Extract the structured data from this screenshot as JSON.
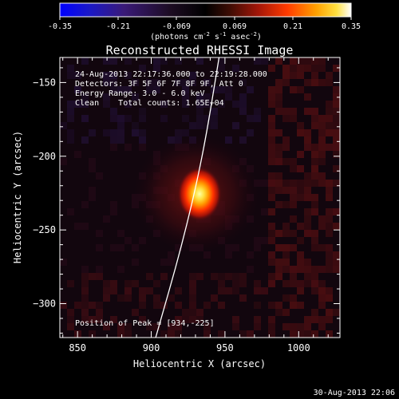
{
  "chart_data": {
    "type": "heatmap",
    "title": "Reconstructed RHESSI Image",
    "xlabel": "Heliocentric X (arcsec)",
    "ylabel": "Heliocentric Y (arcsec)",
    "xlim": [
      838,
      1028
    ],
    "ylim": [
      -323,
      -133
    ],
    "xticks": [
      850,
      900,
      950,
      1000
    ],
    "yticks": [
      -150,
      -200,
      -250,
      -300
    ],
    "colorbar": {
      "range": [
        -0.35,
        0.35
      ],
      "ticks": [
        "-0.35",
        "-0.21",
        "-0.069",
        "0.069",
        "0.21",
        "0.35"
      ],
      "label_prefix": "(photons cm",
      "label_exp1": "-2",
      "label_mid": " s",
      "label_exp2": "-1",
      "label_mid2": " asec",
      "label_exp3": "-2",
      "label_suffix": ")"
    },
    "info_lines": [
      "24-Aug-2013 22:17:36.000 to 22:19:28.000",
      "Detectors: 3F 5F 6F 7F 8F 9F, Att 0",
      "Energy Range: 3.0 - 6.0 keV",
      "Clean    Total counts: 1.65E+04"
    ],
    "peak_label": "Position of Peak = [934,-225]",
    "peak": {
      "x": 934,
      "y": -225,
      "value": 0.35
    },
    "limb_points": [
      [
        946,
        -133
      ],
      [
        935,
        -200
      ],
      [
        921,
        -260
      ],
      [
        903,
        -323
      ]
    ],
    "footer": "30-Aug-2013 22:06"
  }
}
